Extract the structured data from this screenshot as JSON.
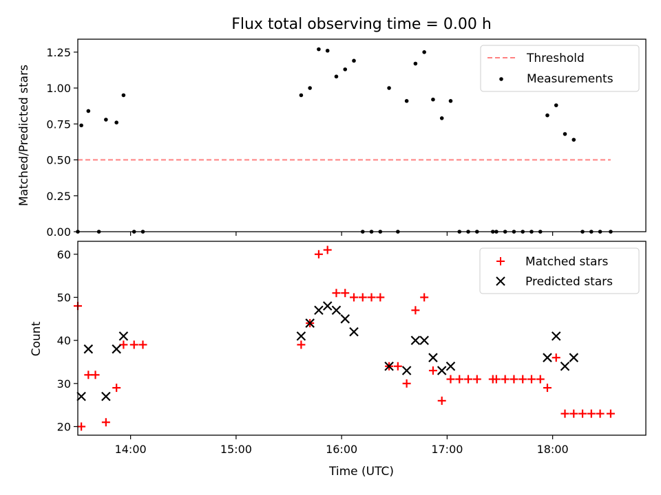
{
  "chart_data": [
    {
      "type": "scatter",
      "title": "Flux total observing time = 0.00 h",
      "ylabel": "Matched/Predicted stars",
      "xlabel": "",
      "ylim": [
        0,
        1.34
      ],
      "yticks": [
        0.0,
        0.25,
        0.5,
        0.75,
        1.0,
        1.25
      ],
      "ytick_labels": [
        "0.00",
        "0.25",
        "0.50",
        "0.75",
        "1.00",
        "1.25"
      ],
      "xlim": [
        "13:30",
        "18:53"
      ],
      "xticks": [
        "14:00",
        "15:00",
        "16:00",
        "17:00",
        "18:00"
      ],
      "grid": false,
      "legend_position": "top-right",
      "threshold": {
        "name": "Threshold",
        "value": 0.5,
        "x_start": "13:30",
        "x_end": "18:33",
        "color": "#ff8080",
        "style": "dashed"
      },
      "series": [
        {
          "name": "Measurements",
          "color": "#000000",
          "marker": "dot",
          "points": [
            [
              "13:30",
              0
            ],
            [
              "13:32",
              0.74
            ],
            [
              "13:36",
              0.84
            ],
            [
              "13:42",
              0
            ],
            [
              "13:46",
              0.78
            ],
            [
              "13:52",
              0.76
            ],
            [
              "13:56",
              0.95
            ],
            [
              "14:02",
              0
            ],
            [
              "14:07",
              0
            ],
            [
              "15:37",
              0.95
            ],
            [
              "15:42",
              1.0
            ],
            [
              "15:47",
              1.27
            ],
            [
              "15:52",
              1.26
            ],
            [
              "15:57",
              1.08
            ],
            [
              "16:02",
              1.13
            ],
            [
              "16:07",
              1.19
            ],
            [
              "16:12",
              0
            ],
            [
              "16:17",
              0
            ],
            [
              "16:22",
              0
            ],
            [
              "16:27",
              1.0
            ],
            [
              "16:32",
              0
            ],
            [
              "16:37",
              0.91
            ],
            [
              "16:42",
              1.17
            ],
            [
              "16:47",
              1.25
            ],
            [
              "16:52",
              0.92
            ],
            [
              "16:57",
              0.79
            ],
            [
              "17:02",
              0.91
            ],
            [
              "17:07",
              0
            ],
            [
              "17:12",
              0
            ],
            [
              "17:17",
              0
            ],
            [
              "17:26",
              0
            ],
            [
              "17:28",
              0
            ],
            [
              "17:33",
              0
            ],
            [
              "17:38",
              0
            ],
            [
              "17:43",
              0
            ],
            [
              "17:48",
              0
            ],
            [
              "17:53",
              0
            ],
            [
              "17:57",
              0.81
            ],
            [
              "18:02",
              0.88
            ],
            [
              "18:07",
              0.68
            ],
            [
              "18:12",
              0.64
            ],
            [
              "18:17",
              0
            ],
            [
              "18:22",
              0
            ],
            [
              "18:27",
              0
            ],
            [
              "18:33",
              0
            ]
          ]
        }
      ]
    },
    {
      "type": "scatter",
      "title": "",
      "xlabel": "Time (UTC)",
      "ylabel": "Count",
      "ylim": [
        18,
        63
      ],
      "yticks": [
        20,
        30,
        40,
        50,
        60
      ],
      "ytick_labels": [
        "20",
        "30",
        "40",
        "50",
        "60"
      ],
      "xlim": [
        "13:30",
        "18:53"
      ],
      "xticks": [
        "14:00",
        "15:00",
        "16:00",
        "17:00",
        "18:00"
      ],
      "xtick_labels": [
        "14:00",
        "15:00",
        "16:00",
        "17:00",
        "18:00"
      ],
      "grid": false,
      "legend_position": "top-right",
      "series": [
        {
          "name": "Matched stars",
          "color": "#ff0000",
          "marker": "plus",
          "points": [
            [
              "13:30",
              48
            ],
            [
              "13:32",
              20
            ],
            [
              "13:36",
              32
            ],
            [
              "13:40",
              32
            ],
            [
              "13:46",
              21
            ],
            [
              "13:52",
              29
            ],
            [
              "13:56",
              39
            ],
            [
              "14:02",
              39
            ],
            [
              "14:07",
              39
            ],
            [
              "15:37",
              39
            ],
            [
              "15:42",
              44
            ],
            [
              "15:47",
              60
            ],
            [
              "15:52",
              61
            ],
            [
              "15:57",
              51
            ],
            [
              "16:02",
              51
            ],
            [
              "16:07",
              50
            ],
            [
              "16:12",
              50
            ],
            [
              "16:17",
              50
            ],
            [
              "16:22",
              50
            ],
            [
              "16:27",
              34
            ],
            [
              "16:32",
              34
            ],
            [
              "16:37",
              30
            ],
            [
              "16:42",
              47
            ],
            [
              "16:47",
              50
            ],
            [
              "16:52",
              33
            ],
            [
              "16:57",
              26
            ],
            [
              "17:02",
              31
            ],
            [
              "17:07",
              31
            ],
            [
              "17:12",
              31
            ],
            [
              "17:17",
              31
            ],
            [
              "17:26",
              31
            ],
            [
              "17:28",
              31
            ],
            [
              "17:33",
              31
            ],
            [
              "17:38",
              31
            ],
            [
              "17:43",
              31
            ],
            [
              "17:48",
              31
            ],
            [
              "17:53",
              31
            ],
            [
              "17:57",
              29
            ],
            [
              "18:02",
              36
            ],
            [
              "18:07",
              23
            ],
            [
              "18:12",
              23
            ],
            [
              "18:17",
              23
            ],
            [
              "18:22",
              23
            ],
            [
              "18:27",
              23
            ],
            [
              "18:33",
              23
            ]
          ]
        },
        {
          "name": "Predicted stars",
          "color": "#000000",
          "marker": "x",
          "points": [
            [
              "13:32",
              27
            ],
            [
              "13:36",
              38
            ],
            [
              "13:46",
              27
            ],
            [
              "13:52",
              38
            ],
            [
              "13:56",
              41
            ],
            [
              "15:37",
              41
            ],
            [
              "15:42",
              44
            ],
            [
              "15:47",
              47
            ],
            [
              "15:52",
              48
            ],
            [
              "15:57",
              47
            ],
            [
              "16:02",
              45
            ],
            [
              "16:07",
              42
            ],
            [
              "16:27",
              34
            ],
            [
              "16:37",
              33
            ],
            [
              "16:42",
              40
            ],
            [
              "16:47",
              40
            ],
            [
              "16:52",
              36
            ],
            [
              "16:57",
              33
            ],
            [
              "17:02",
              34
            ],
            [
              "17:57",
              36
            ],
            [
              "18:02",
              41
            ],
            [
              "18:07",
              34
            ],
            [
              "18:12",
              36
            ]
          ]
        }
      ]
    }
  ]
}
